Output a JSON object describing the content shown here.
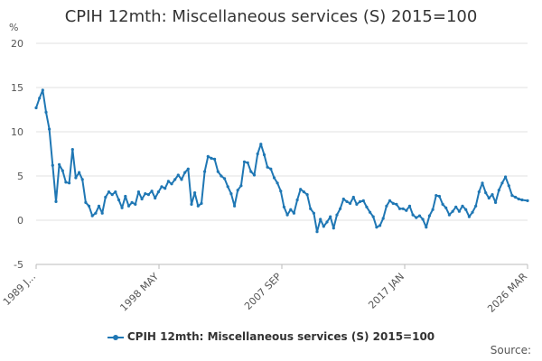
{
  "chart_data": {
    "type": "line",
    "title": "CPIH 12mth: Miscellaneous services (S) 2015=100",
    "ylabel": "%",
    "ylim": [
      -5,
      20
    ],
    "yticks": [
      -5,
      0,
      5,
      10,
      15,
      20
    ],
    "xlim": [
      "1989 JAN",
      "2026 MAR"
    ],
    "xtick_labels": [
      "1989 J...",
      "1998 MAY",
      "2007 SEP",
      "2017 JAN",
      "2026 MAR"
    ],
    "grid": "horizontal",
    "legend_position": "bottom",
    "series": [
      {
        "name": "CPIH 12mth: Miscellaneous services (S) 2015=100",
        "color": "#1f77b4",
        "points": [
          [
            "1989-01",
            12.7
          ],
          [
            "1989-04",
            13.8
          ],
          [
            "1989-07",
            14.7
          ],
          [
            "1989-10",
            12.2
          ],
          [
            "1990-01",
            10.3
          ],
          [
            "1990-04",
            6.2
          ],
          [
            "1990-07",
            2.1
          ],
          [
            "1990-10",
            6.3
          ],
          [
            "1991-01",
            5.6
          ],
          [
            "1991-04",
            4.3
          ],
          [
            "1991-07",
            4.2
          ],
          [
            "1991-10",
            8.0
          ],
          [
            "1992-01",
            4.8
          ],
          [
            "1992-04",
            5.4
          ],
          [
            "1992-07",
            4.6
          ],
          [
            "1992-10",
            2.0
          ],
          [
            "1993-01",
            1.6
          ],
          [
            "1993-04",
            0.5
          ],
          [
            "1993-07",
            0.8
          ],
          [
            "1993-10",
            1.6
          ],
          [
            "1994-01",
            0.8
          ],
          [
            "1994-04",
            2.6
          ],
          [
            "1994-07",
            3.2
          ],
          [
            "1994-10",
            2.9
          ],
          [
            "1995-01",
            3.2
          ],
          [
            "1995-04",
            2.3
          ],
          [
            "1995-07",
            1.4
          ],
          [
            "1995-10",
            2.7
          ],
          [
            "1996-01",
            1.6
          ],
          [
            "1996-04",
            2.0
          ],
          [
            "1996-07",
            1.8
          ],
          [
            "1996-10",
            3.2
          ],
          [
            "1997-01",
            2.4
          ],
          [
            "1997-04",
            3.0
          ],
          [
            "1997-07",
            2.9
          ],
          [
            "1997-10",
            3.3
          ],
          [
            "1998-01",
            2.5
          ],
          [
            "1998-04",
            3.2
          ],
          [
            "1998-07",
            3.8
          ],
          [
            "1998-10",
            3.6
          ],
          [
            "1999-01",
            4.4
          ],
          [
            "1999-04",
            4.1
          ],
          [
            "1999-07",
            4.6
          ],
          [
            "1999-10",
            5.1
          ],
          [
            "2000-01",
            4.6
          ],
          [
            "2000-04",
            5.4
          ],
          [
            "2000-07",
            5.8
          ],
          [
            "2000-10",
            1.8
          ],
          [
            "2001-01",
            3.1
          ],
          [
            "2001-04",
            1.6
          ],
          [
            "2001-07",
            1.9
          ],
          [
            "2001-10",
            5.5
          ],
          [
            "2002-01",
            7.2
          ],
          [
            "2002-04",
            7.0
          ],
          [
            "2002-07",
            6.9
          ],
          [
            "2002-10",
            5.5
          ],
          [
            "2003-01",
            5.0
          ],
          [
            "2003-04",
            4.7
          ],
          [
            "2003-07",
            3.8
          ],
          [
            "2003-10",
            3.0
          ],
          [
            "2004-01",
            1.6
          ],
          [
            "2004-04",
            3.4
          ],
          [
            "2004-07",
            3.9
          ],
          [
            "2004-10",
            6.6
          ],
          [
            "2005-01",
            6.5
          ],
          [
            "2005-04",
            5.5
          ],
          [
            "2005-07",
            5.1
          ],
          [
            "2005-10",
            7.5
          ],
          [
            "2006-01",
            8.6
          ],
          [
            "2006-04",
            7.4
          ],
          [
            "2006-07",
            6.0
          ],
          [
            "2006-10",
            5.8
          ],
          [
            "2007-01",
            4.8
          ],
          [
            "2007-04",
            4.2
          ],
          [
            "2007-07",
            3.3
          ],
          [
            "2007-10",
            1.5
          ],
          [
            "2008-01",
            0.6
          ],
          [
            "2008-04",
            1.2
          ],
          [
            "2008-07",
            0.8
          ],
          [
            "2008-10",
            2.3
          ],
          [
            "2009-01",
            3.5
          ],
          [
            "2009-04",
            3.2
          ],
          [
            "2009-07",
            2.9
          ],
          [
            "2009-10",
            1.3
          ],
          [
            "2010-01",
            0.8
          ],
          [
            "2010-04",
            -1.3
          ],
          [
            "2010-07",
            0.1
          ],
          [
            "2010-10",
            -0.7
          ],
          [
            "2011-01",
            -0.2
          ],
          [
            "2011-04",
            0.4
          ],
          [
            "2011-07",
            -0.9
          ],
          [
            "2011-10",
            0.6
          ],
          [
            "2012-01",
            1.3
          ],
          [
            "2012-04",
            2.4
          ],
          [
            "2012-07",
            2.1
          ],
          [
            "2012-10",
            1.9
          ],
          [
            "2013-01",
            2.6
          ],
          [
            "2013-04",
            1.8
          ],
          [
            "2013-07",
            2.1
          ],
          [
            "2013-10",
            2.2
          ],
          [
            "2014-01",
            1.5
          ],
          [
            "2014-04",
            0.9
          ],
          [
            "2014-07",
            0.4
          ],
          [
            "2014-10",
            -0.8
          ],
          [
            "2015-01",
            -0.6
          ],
          [
            "2015-04",
            0.2
          ],
          [
            "2015-07",
            1.6
          ],
          [
            "2015-10",
            2.2
          ],
          [
            "2016-01",
            1.9
          ],
          [
            "2016-04",
            1.8
          ],
          [
            "2016-07",
            1.3
          ],
          [
            "2016-10",
            1.3
          ],
          [
            "2017-01",
            1.1
          ],
          [
            "2017-04",
            1.6
          ],
          [
            "2017-07",
            0.6
          ],
          [
            "2017-10",
            0.3
          ],
          [
            "2018-01",
            0.5
          ],
          [
            "2018-04",
            0.1
          ],
          [
            "2018-07",
            -0.8
          ],
          [
            "2018-10",
            0.5
          ],
          [
            "2019-01",
            1.2
          ],
          [
            "2019-04",
            2.8
          ],
          [
            "2019-07",
            2.7
          ],
          [
            "2019-10",
            1.8
          ],
          [
            "2020-01",
            1.4
          ],
          [
            "2020-04",
            0.6
          ],
          [
            "2020-07",
            1.0
          ],
          [
            "2020-10",
            1.5
          ],
          [
            "2021-01",
            1.0
          ],
          [
            "2021-04",
            1.6
          ],
          [
            "2021-07",
            1.2
          ],
          [
            "2021-10",
            0.4
          ],
          [
            "2022-01",
            0.9
          ],
          [
            "2022-04",
            1.6
          ],
          [
            "2022-07",
            3.2
          ],
          [
            "2022-10",
            4.2
          ],
          [
            "2023-01",
            3.1
          ],
          [
            "2023-04",
            2.5
          ],
          [
            "2023-07",
            2.9
          ],
          [
            "2023-10",
            2.0
          ],
          [
            "2024-01",
            3.4
          ],
          [
            "2024-04",
            4.2
          ],
          [
            "2024-07",
            4.9
          ],
          [
            "2024-10",
            3.9
          ],
          [
            "2025-01",
            2.8
          ],
          [
            "2025-04",
            2.6
          ],
          [
            "2025-07",
            2.4
          ],
          [
            "2025-10",
            2.3
          ],
          [
            "2026-03",
            2.2
          ]
        ]
      }
    ]
  },
  "legend": {
    "label": "CPIH 12mth: Miscellaneous services (S) 2015=100"
  },
  "source": "Source:"
}
